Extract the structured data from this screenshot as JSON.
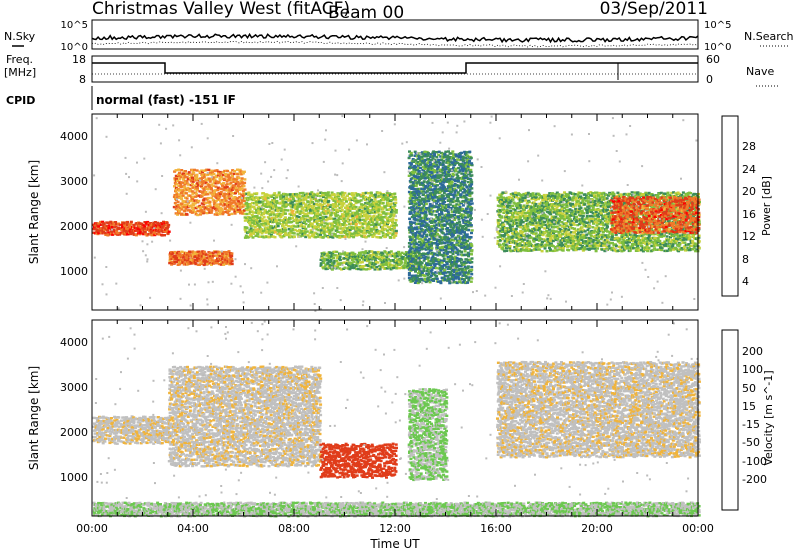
{
  "header": {
    "title": "Christmas Valley West (fitACF)",
    "beam": "Beam 00",
    "date": "03/Sep/2011"
  },
  "noise_panel": {
    "left_label": "N.Sky",
    "left_ticks": [
      "10^5",
      "10^0"
    ],
    "right_label": "N.Search",
    "right_ticks": [
      "10^5",
      "10^0"
    ]
  },
  "freq_panel": {
    "left_label": "Freq.",
    "left_unit": "[MHz]",
    "left_ticks": [
      "18",
      "8"
    ],
    "right_label": "Nave",
    "right_ticks": [
      "60",
      "0"
    ]
  },
  "cpid": {
    "label": "CPID",
    "value": "normal (fast) -151 IF"
  },
  "axes": {
    "xlabel": "Time UT",
    "xticks": [
      "00:00",
      "04:00",
      "08:00",
      "12:00",
      "16:00",
      "20:00",
      "00:00"
    ],
    "ylabel": "Slant Range [km]",
    "yticks": [
      "1000",
      "2000",
      "3000",
      "4000"
    ]
  },
  "colors": {
    "power": [
      "#1a1aff",
      "#2d6a9a",
      "#3c8c5a",
      "#7fbf3f",
      "#c8d23c",
      "#f2b43c",
      "#f07a2a",
      "#e03c1a",
      "#ff0000"
    ],
    "velocity": [
      "#2a2ab4",
      "#2d6a9a",
      "#3c9a5a",
      "#6cc850",
      "#c0c0c0",
      "#c0c0c0",
      "#f0b43c",
      "#f07a2a",
      "#e03c1a",
      "#ff0000"
    ],
    "gray_scatter": "#bbbbbb"
  },
  "chart_data": [
    {
      "type": "heatmap",
      "name": "power",
      "x_range_hours": [
        0,
        24
      ],
      "y_range_km": [
        180,
        4500
      ],
      "colorbar": {
        "label": "Power [dB]",
        "ticks": [
          "28",
          "24",
          "20",
          "16",
          "12",
          "8",
          "4"
        ],
        "range": [
          0,
          32
        ]
      },
      "features": [
        {
          "t0": 0,
          "t1": 3,
          "r0": 1850,
          "r1": 2150,
          "level": 26
        },
        {
          "t0": 3,
          "t1": 5.5,
          "r0": 1200,
          "r1": 1500,
          "level": 24
        },
        {
          "t0": 3.2,
          "t1": 6,
          "r0": 2300,
          "r1": 3300,
          "level": 22
        },
        {
          "t0": 6,
          "t1": 12,
          "r0": 1800,
          "r1": 2800,
          "level": 14
        },
        {
          "t0": 9,
          "t1": 13,
          "r0": 1100,
          "r1": 1500,
          "level": 12
        },
        {
          "t0": 12.5,
          "t1": 15,
          "r0": 800,
          "r1": 3700,
          "level": 8
        },
        {
          "t0": 16,
          "t1": 24,
          "r0": 1500,
          "r1": 2800,
          "level": 12
        },
        {
          "t0": 20.5,
          "t1": 24,
          "r0": 1900,
          "r1": 2700,
          "level": 25
        }
      ]
    },
    {
      "type": "heatmap",
      "name": "velocity",
      "x_range_hours": [
        0,
        24
      ],
      "y_range_km": [
        180,
        4500
      ],
      "colorbar": {
        "label": "Velocity [m s^-1]",
        "ticks": [
          "200",
          "100",
          "50",
          "15",
          "-15",
          "-50",
          "-100",
          "-200"
        ],
        "range": [
          -250,
          250
        ]
      },
      "features": [
        {
          "t0": 0,
          "t1": 3,
          "r0": 1800,
          "r1": 2400,
          "level": 0
        },
        {
          "t0": 3,
          "t1": 9,
          "r0": 1300,
          "r1": 3500,
          "level": 0
        },
        {
          "t0": 9,
          "t1": 12,
          "r0": 1050,
          "r1": 1800,
          "level": -120
        },
        {
          "t0": 12.5,
          "t1": 14,
          "r0": 1000,
          "r1": 3000,
          "level": 40
        },
        {
          "t0": 16,
          "t1": 24,
          "r0": 1500,
          "r1": 3600,
          "level": 0
        },
        {
          "t0": 0,
          "t1": 24,
          "r0": 200,
          "r1": 500,
          "level": 30
        }
      ]
    }
  ]
}
